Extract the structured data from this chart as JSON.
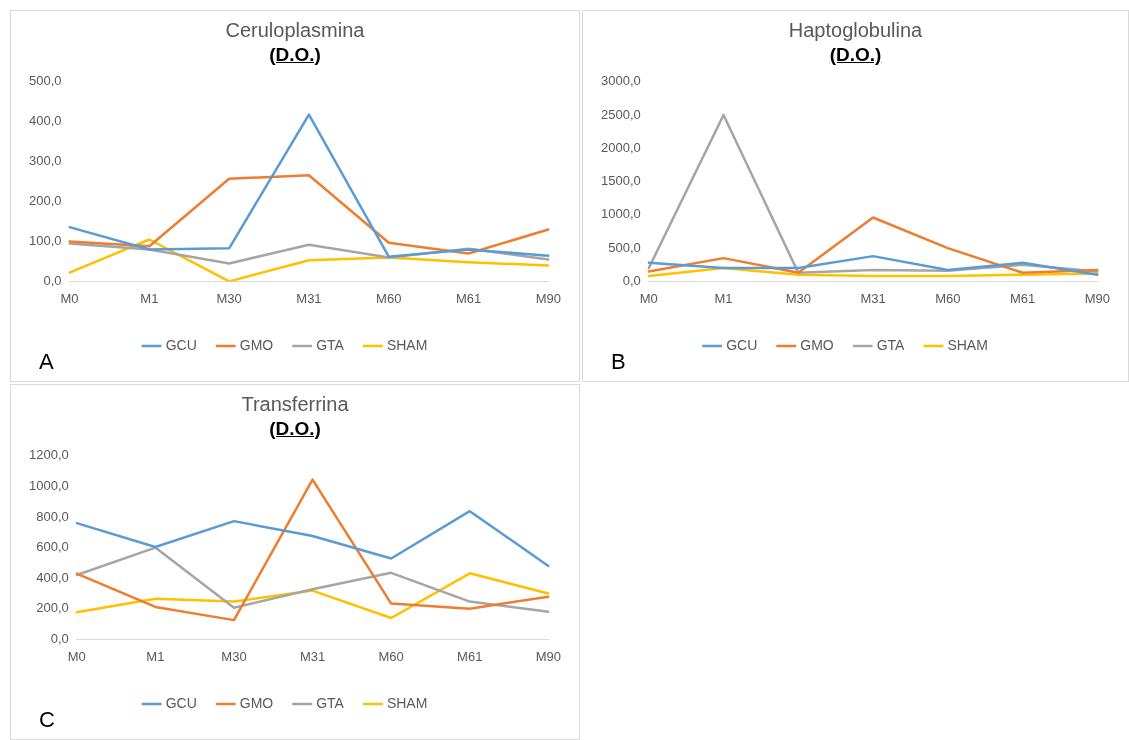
{
  "chart_data": [
    {
      "type": "line",
      "title": "Ceruloplasmina",
      "subtitle": "(D.O.)",
      "categories": [
        "M0",
        "M1",
        "M30",
        "M31",
        "M60",
        "M61",
        "M90"
      ],
      "series": [
        {
          "name": "GCU",
          "color": "#5b9bd5",
          "values": [
            136,
            80,
            83,
            418,
            62,
            80,
            64
          ]
        },
        {
          "name": "GMO",
          "color": "#ed7d31",
          "values": [
            100,
            88,
            257,
            266,
            97,
            70,
            130
          ]
        },
        {
          "name": "GTA",
          "color": "#a5a5a5",
          "values": [
            95,
            80,
            45,
            92,
            60,
            82,
            55
          ]
        },
        {
          "name": "SHAM",
          "color": "#ffc000",
          "values": [
            22,
            105,
            0,
            53,
            60,
            48,
            40
          ]
        }
      ],
      "ylim": [
        0,
        500
      ],
      "yticks": [
        {
          "value": 0,
          "label": "0,0"
        },
        {
          "value": 100,
          "label": "100,0"
        },
        {
          "value": 200,
          "label": "200,0"
        },
        {
          "value": 300,
          "label": "300,0"
        },
        {
          "value": 400,
          "label": "400,0"
        },
        {
          "value": 500,
          "label": "500,0"
        }
      ],
      "grid": false,
      "legend": "bottom",
      "marker": "none",
      "line_style": "solid",
      "annotations": [
        "A"
      ]
    },
    {
      "type": "line",
      "title": "Haptoglobulina",
      "subtitle": "(D.O.)",
      "categories": [
        "M0",
        "M1",
        "M30",
        "M31",
        "M60",
        "M61",
        "M90"
      ],
      "series": [
        {
          "name": "GCU",
          "color": "#5b9bd5",
          "values": [
            280,
            200,
            200,
            380,
            170,
            280,
            100
          ]
        },
        {
          "name": "GMO",
          "color": "#ed7d31",
          "values": [
            150,
            350,
            130,
            960,
            500,
            130,
            170
          ]
        },
        {
          "name": "GTA",
          "color": "#a5a5a5",
          "values": [
            200,
            2500,
            130,
            170,
            160,
            250,
            150
          ]
        },
        {
          "name": "SHAM",
          "color": "#ffc000",
          "values": [
            80,
            200,
            100,
            80,
            80,
            100,
            120
          ]
        }
      ],
      "ylim": [
        0,
        3000
      ],
      "yticks": [
        {
          "value": 0,
          "label": "0,0"
        },
        {
          "value": 500,
          "label": "500,0"
        },
        {
          "value": 1000,
          "label": "1000,0"
        },
        {
          "value": 1500,
          "label": "1500,0"
        },
        {
          "value": 2000,
          "label": "2000,0"
        },
        {
          "value": 2500,
          "label": "2500,0"
        },
        {
          "value": 3000,
          "label": "3000,0"
        }
      ],
      "grid": false,
      "legend": "bottom",
      "marker": "none",
      "line_style": "solid",
      "annotations": [
        "B"
      ]
    },
    {
      "type": "line",
      "title": "Transferrina",
      "subtitle": "(D.O.)",
      "categories": [
        "M0",
        "M1",
        "M30",
        "M31",
        "M60",
        "M61",
        "M90"
      ],
      "series": [
        {
          "name": "GCU",
          "color": "#5b9bd5",
          "values": [
            760,
            604,
            773,
            676,
            529,
            838,
            480
          ]
        },
        {
          "name": "GMO",
          "color": "#ed7d31",
          "values": [
            430,
            212,
            126,
            1044,
            234,
            201,
            279
          ]
        },
        {
          "name": "GTA",
          "color": "#a5a5a5",
          "values": [
            421,
            600,
            207,
            328,
            435,
            247,
            180
          ]
        },
        {
          "name": "SHAM",
          "color": "#ffc000",
          "values": [
            177,
            266,
            247,
            319,
            140,
            432,
            300
          ]
        }
      ],
      "ylim": [
        0,
        1200
      ],
      "yticks": [
        {
          "value": 0,
          "label": "0,0"
        },
        {
          "value": 200,
          "label": "200,0"
        },
        {
          "value": 400,
          "label": "400,0"
        },
        {
          "value": 600,
          "label": "600,0"
        },
        {
          "value": 800,
          "label": "800,0"
        },
        {
          "value": 1000,
          "label": "1000,0"
        },
        {
          "value": 1200,
          "label": "1200,0"
        }
      ],
      "grid": false,
      "legend": "bottom",
      "marker": "none",
      "line_style": "solid",
      "annotations": [
        "C"
      ]
    }
  ]
}
